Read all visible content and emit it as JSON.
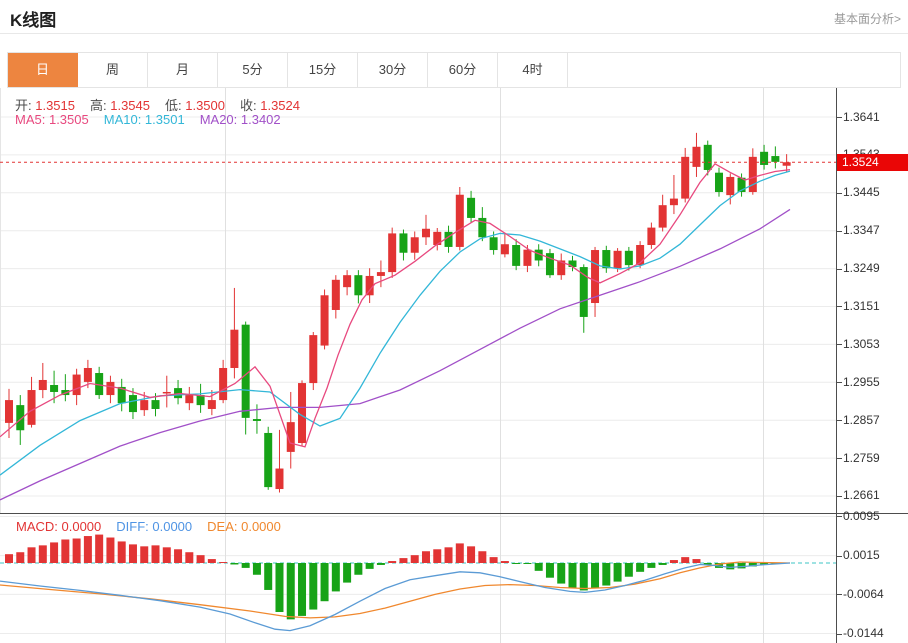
{
  "header": {
    "title": "K线图",
    "link": "基本面分析>"
  },
  "tabs": {
    "items": [
      "日",
      "周",
      "月",
      "5分",
      "15分",
      "30分",
      "60分",
      "4时"
    ],
    "selected_index": 0
  },
  "info": {
    "ohlc": [
      {
        "label": "开:",
        "value": "1.3515"
      },
      {
        "label": "高:",
        "value": "1.3545"
      },
      {
        "label": "低:",
        "value": "1.3500"
      },
      {
        "label": "收:",
        "value": "1.3524"
      }
    ],
    "ma": [
      {
        "label": "MA5:",
        "value": "1.3505",
        "color": "#e8497f"
      },
      {
        "label": "MA10:",
        "value": "1.3501",
        "color": "#33b7d8"
      },
      {
        "label": "MA20:",
        "value": "1.3402",
        "color": "#a150c8"
      }
    ]
  },
  "macd_info": [
    {
      "label": "MACD:",
      "value": "0.0000",
      "color": "#e23434"
    },
    {
      "label": "DIFF:",
      "value": "0.0000",
      "color": "#4f94e4"
    },
    {
      "label": "DEA:",
      "value": "0.0000",
      "color": "#f0882e"
    }
  ],
  "colors": {
    "up": "#e23434",
    "down": "#17a317",
    "ma5": "#e8497f",
    "ma10": "#33b7d8",
    "ma20": "#a150c8",
    "diff": "#5b9bd5",
    "dea": "#f0882e",
    "current_price_line": "#e23434",
    "zero_line": "#3ec6c6",
    "badge_bg": "#ea0606",
    "tab_selected_bg": "#ed8540",
    "grid": "#ececec",
    "grid_vertical": "#e0e0e0"
  },
  "chart_data": {
    "type": "candlestick+macd",
    "current_price": "1.3524",
    "price_axis": {
      "labels": [
        "1.3641",
        "1.3543",
        "1.3445",
        "1.3347",
        "1.3249",
        "1.3151",
        "1.3053",
        "1.2955",
        "1.2857",
        "1.2759",
        "1.2661"
      ],
      "max": 1.3641,
      "min": 1.2661
    },
    "macd_axis": {
      "labels": [
        "0.0095",
        "0.0015",
        "-0.0064",
        "-0.0144"
      ],
      "max": 0.0095,
      "min": -0.0144
    },
    "candles": [
      [
        1.285,
        1.2938,
        1.2811,
        1.2909
      ],
      [
        1.2896,
        1.2922,
        1.2793,
        1.2831
      ],
      [
        1.2845,
        1.2969,
        1.2838,
        1.2935
      ],
      [
        1.2935,
        1.3005,
        1.2914,
        1.2961
      ],
      [
        1.2948,
        1.2985,
        1.2901,
        1.293
      ],
      [
        1.2935,
        1.2976,
        1.2906,
        1.2922
      ],
      [
        1.2922,
        1.299,
        1.2896,
        1.2975
      ],
      [
        1.2956,
        1.3013,
        1.294,
        1.2992
      ],
      [
        1.2979,
        1.2995,
        1.2912,
        1.2922
      ],
      [
        1.2922,
        1.2972,
        1.2901,
        1.2956
      ],
      [
        1.2943,
        1.2964,
        1.288,
        1.2901
      ],
      [
        1.2922,
        1.294,
        1.286,
        1.2878
      ],
      [
        1.2883,
        1.293,
        1.2868,
        1.2909
      ],
      [
        1.2909,
        1.2927,
        1.2867,
        1.2886
      ],
      [
        1.293,
        1.2972,
        1.289,
        1.293
      ],
      [
        1.294,
        1.2961,
        1.2898,
        1.2914
      ],
      [
        1.2901,
        1.2943,
        1.2883,
        1.2922
      ],
      [
        1.2922,
        1.2951,
        1.2876,
        1.2896
      ],
      [
        1.2886,
        1.2935,
        1.287,
        1.2909
      ],
      [
        1.2909,
        1.3013,
        1.2901,
        1.2992
      ],
      [
        1.2992,
        1.3199,
        1.2965,
        1.3091
      ],
      [
        1.3104,
        1.3112,
        1.282,
        1.2863
      ],
      [
        1.286,
        1.2898,
        1.2822,
        1.2855
      ],
      [
        1.2824,
        1.284,
        1.2677,
        1.2684
      ],
      [
        1.2679,
        1.2832,
        1.267,
        1.2732
      ],
      [
        1.2775,
        1.293,
        1.2732,
        1.2852
      ],
      [
        1.2798,
        1.296,
        1.279,
        1.2953
      ],
      [
        1.2953,
        1.3085,
        1.2935,
        1.3077
      ],
      [
        1.305,
        1.3195,
        1.304,
        1.318
      ],
      [
        1.3142,
        1.3232,
        1.312,
        1.322
      ],
      [
        1.3201,
        1.3245,
        1.318,
        1.3232
      ],
      [
        1.3232,
        1.3245,
        1.3159,
        1.318
      ],
      [
        1.318,
        1.325,
        1.316,
        1.323
      ],
      [
        1.323,
        1.327,
        1.3201,
        1.324
      ],
      [
        1.324,
        1.3355,
        1.3225,
        1.334
      ],
      [
        1.334,
        1.335,
        1.327,
        1.329
      ],
      [
        1.329,
        1.3345,
        1.3272,
        1.333
      ],
      [
        1.333,
        1.3388,
        1.331,
        1.3352
      ],
      [
        1.331,
        1.3354,
        1.3296,
        1.3344
      ],
      [
        1.3344,
        1.336,
        1.329,
        1.3305
      ],
      [
        1.3305,
        1.346,
        1.3296,
        1.344
      ],
      [
        1.3432,
        1.345,
        1.3368,
        1.338
      ],
      [
        1.338,
        1.3408,
        1.332,
        1.333
      ],
      [
        1.333,
        1.3345,
        1.3285,
        1.3297
      ],
      [
        1.3286,
        1.3342,
        1.3278,
        1.3312
      ],
      [
        1.331,
        1.3325,
        1.3245,
        1.3256
      ],
      [
        1.3256,
        1.331,
        1.324,
        1.3298
      ],
      [
        1.3298,
        1.3312,
        1.3255,
        1.327
      ],
      [
        1.3289,
        1.33,
        1.3225,
        1.3232
      ],
      [
        1.3232,
        1.3288,
        1.322,
        1.327
      ],
      [
        1.327,
        1.3282,
        1.3242,
        1.3253
      ],
      [
        1.3253,
        1.326,
        1.3083,
        1.3124
      ],
      [
        1.316,
        1.3305,
        1.3124,
        1.3297
      ],
      [
        1.3297,
        1.3308,
        1.3238,
        1.325
      ],
      [
        1.325,
        1.3302,
        1.324,
        1.3295
      ],
      [
        1.3295,
        1.3305,
        1.3244,
        1.3258
      ],
      [
        1.3258,
        1.332,
        1.325,
        1.331
      ],
      [
        1.331,
        1.3368,
        1.33,
        1.3355
      ],
      [
        1.3355,
        1.344,
        1.3345,
        1.3413
      ],
      [
        1.3413,
        1.3491,
        1.339,
        1.343
      ],
      [
        1.343,
        1.3561,
        1.342,
        1.3538
      ],
      [
        1.3512,
        1.36,
        1.3486,
        1.3564
      ],
      [
        1.3569,
        1.358,
        1.349,
        1.3504
      ],
      [
        1.3497,
        1.351,
        1.3435,
        1.3447
      ],
      [
        1.3439,
        1.3495,
        1.3415,
        1.3486
      ],
      [
        1.3484,
        1.3495,
        1.3435,
        1.3447
      ],
      [
        1.3447,
        1.356,
        1.344,
        1.3538
      ],
      [
        1.3551,
        1.3569,
        1.3505,
        1.3517
      ],
      [
        1.354,
        1.3565,
        1.3508,
        1.3525
      ],
      [
        1.3515,
        1.3545,
        1.35,
        1.3524
      ]
    ],
    "ma5_path": [
      [
        0,
        1.2814
      ],
      [
        30,
        1.288
      ],
      [
        60,
        1.2922
      ],
      [
        90,
        1.2952
      ],
      [
        120,
        1.294
      ],
      [
        150,
        1.2916
      ],
      [
        180,
        1.2926
      ],
      [
        210,
        1.2918
      ],
      [
        235,
        1.2952
      ],
      [
        255,
        1.2995
      ],
      [
        270,
        1.2945
      ],
      [
        290,
        1.2798
      ],
      [
        305,
        1.2788
      ],
      [
        315,
        1.2862
      ],
      [
        327,
        1.294
      ],
      [
        338,
        1.3025
      ],
      [
        350,
        1.3105
      ],
      [
        362,
        1.3168
      ],
      [
        375,
        1.321
      ],
      [
        395,
        1.3232
      ],
      [
        415,
        1.3268
      ],
      [
        435,
        1.3308
      ],
      [
        455,
        1.3342
      ],
      [
        475,
        1.3374
      ],
      [
        490,
        1.3366
      ],
      [
        510,
        1.3332
      ],
      [
        530,
        1.3296
      ],
      [
        550,
        1.3276
      ],
      [
        570,
        1.3258
      ],
      [
        588,
        1.3226
      ],
      [
        600,
        1.3212
      ],
      [
        620,
        1.3236
      ],
      [
        640,
        1.3264
      ],
      [
        660,
        1.3312
      ],
      [
        680,
        1.3388
      ],
      [
        700,
        1.3472
      ],
      [
        715,
        1.352
      ],
      [
        730,
        1.3498
      ],
      [
        745,
        1.3478
      ],
      [
        760,
        1.349
      ],
      [
        775,
        1.35
      ],
      [
        790,
        1.3505
      ]
    ],
    "ma10_path": [
      [
        0,
        1.2715
      ],
      [
        40,
        1.2792
      ],
      [
        80,
        1.2856
      ],
      [
        120,
        1.29
      ],
      [
        160,
        1.292
      ],
      [
        200,
        1.2925
      ],
      [
        240,
        1.2936
      ],
      [
        270,
        1.293
      ],
      [
        300,
        1.2872
      ],
      [
        320,
        1.2842
      ],
      [
        340,
        1.2862
      ],
      [
        360,
        1.294
      ],
      [
        380,
        1.303
      ],
      [
        400,
        1.311
      ],
      [
        420,
        1.318
      ],
      [
        440,
        1.3242
      ],
      [
        460,
        1.3292
      ],
      [
        480,
        1.3326
      ],
      [
        500,
        1.334
      ],
      [
        520,
        1.3336
      ],
      [
        540,
        1.332
      ],
      [
        560,
        1.33
      ],
      [
        580,
        1.328
      ],
      [
        600,
        1.3256
      ],
      [
        620,
        1.3248
      ],
      [
        640,
        1.3256
      ],
      [
        660,
        1.3276
      ],
      [
        680,
        1.3312
      ],
      [
        700,
        1.3362
      ],
      [
        720,
        1.3412
      ],
      [
        740,
        1.345
      ],
      [
        760,
        1.3475
      ],
      [
        775,
        1.349
      ],
      [
        790,
        1.3501
      ]
    ],
    "ma20_path": [
      [
        0,
        1.2651
      ],
      [
        40,
        1.27
      ],
      [
        80,
        1.2745
      ],
      [
        120,
        1.279
      ],
      [
        160,
        1.2825
      ],
      [
        200,
        1.2855
      ],
      [
        240,
        1.288
      ],
      [
        280,
        1.289
      ],
      [
        320,
        1.289
      ],
      [
        360,
        1.29
      ],
      [
        400,
        1.2935
      ],
      [
        440,
        1.2985
      ],
      [
        480,
        1.304
      ],
      [
        520,
        1.3095
      ],
      [
        560,
        1.3145
      ],
      [
        600,
        1.318
      ],
      [
        640,
        1.3215
      ],
      [
        680,
        1.3255
      ],
      [
        720,
        1.33
      ],
      [
        760,
        1.3352
      ],
      [
        790,
        1.3402
      ]
    ],
    "macd_bars": [
      0.0018,
      0.0022,
      0.0032,
      0.0036,
      0.0042,
      0.0048,
      0.005,
      0.0055,
      0.0058,
      0.0052,
      0.0044,
      0.0038,
      0.0034,
      0.0036,
      0.0032,
      0.0028,
      0.0022,
      0.0016,
      0.0008,
      0.0002,
      -0.0003,
      -0.001,
      -0.0024,
      -0.0055,
      -0.01,
      -0.0115,
      -0.0108,
      -0.0095,
      -0.0078,
      -0.0058,
      -0.004,
      -0.0024,
      -0.0012,
      -0.0004,
      0.0004,
      0.001,
      0.0016,
      0.0024,
      0.0028,
      0.0032,
      0.004,
      0.0034,
      0.0024,
      0.0012,
      0.0004,
      -0.0002,
      -0.0001,
      -0.0016,
      -0.003,
      -0.0042,
      -0.005,
      -0.0056,
      -0.0052,
      -0.0046,
      -0.0038,
      -0.0028,
      -0.0018,
      -0.001,
      -0.0004,
      0.0006,
      0.0012,
      0.0008,
      -0.0003,
      -0.001,
      -0.0013,
      -0.0011,
      -0.0007,
      -0.0004,
      -0.0002,
      0.0
    ],
    "diff_line": [
      [
        0,
        -0.0037
      ],
      [
        40,
        -0.0047
      ],
      [
        80,
        -0.0056
      ],
      [
        120,
        -0.0066
      ],
      [
        160,
        -0.0077
      ],
      [
        200,
        -0.009
      ],
      [
        230,
        -0.0104
      ],
      [
        255,
        -0.0122
      ],
      [
        275,
        -0.0135
      ],
      [
        290,
        -0.0138
      ],
      [
        310,
        -0.0128
      ],
      [
        335,
        -0.0105
      ],
      [
        360,
        -0.0078
      ],
      [
        385,
        -0.0052
      ],
      [
        410,
        -0.0034
      ],
      [
        435,
        -0.0026
      ],
      [
        460,
        -0.0018
      ],
      [
        480,
        -0.002
      ],
      [
        500,
        -0.0028
      ],
      [
        520,
        -0.0038
      ],
      [
        545,
        -0.005
      ],
      [
        570,
        -0.0058
      ],
      [
        585,
        -0.006
      ],
      [
        605,
        -0.0055
      ],
      [
        625,
        -0.0046
      ],
      [
        645,
        -0.0035
      ],
      [
        665,
        -0.0022
      ],
      [
        685,
        -0.001
      ],
      [
        700,
        -0.0003
      ],
      [
        715,
        -0.0005
      ],
      [
        730,
        -0.0009
      ],
      [
        745,
        -0.0007
      ],
      [
        760,
        -0.0004
      ],
      [
        775,
        -0.0002
      ],
      [
        790,
        0.0
      ]
    ],
    "dea_line": [
      [
        0,
        -0.0045
      ],
      [
        50,
        -0.0054
      ],
      [
        100,
        -0.0063
      ],
      [
        150,
        -0.0073
      ],
      [
        200,
        -0.0085
      ],
      [
        250,
        -0.0098
      ],
      [
        285,
        -0.0109
      ],
      [
        310,
        -0.0112
      ],
      [
        335,
        -0.011
      ],
      [
        360,
        -0.0103
      ],
      [
        385,
        -0.0092
      ],
      [
        410,
        -0.0078
      ],
      [
        435,
        -0.0064
      ],
      [
        460,
        -0.0053
      ],
      [
        485,
        -0.0046
      ],
      [
        510,
        -0.0044
      ],
      [
        535,
        -0.0046
      ],
      [
        560,
        -0.005
      ],
      [
        585,
        -0.0052
      ],
      [
        610,
        -0.005
      ],
      [
        635,
        -0.0043
      ],
      [
        660,
        -0.0032
      ],
      [
        680,
        -0.002
      ],
      [
        700,
        -0.001
      ],
      [
        720,
        -0.0002
      ],
      [
        740,
        0.0002
      ],
      [
        760,
        0.0001
      ],
      [
        790,
        0.0
      ]
    ]
  }
}
